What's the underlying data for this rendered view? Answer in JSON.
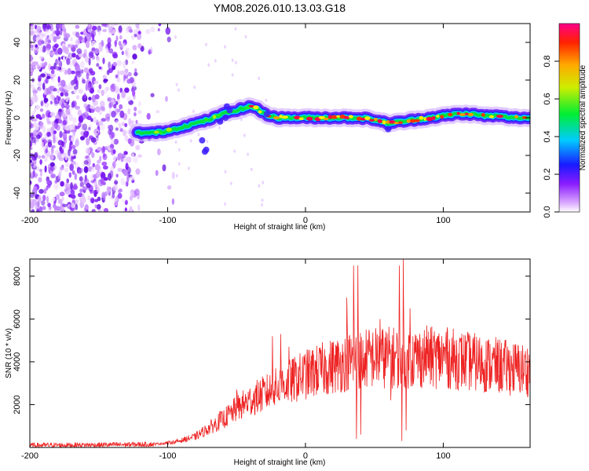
{
  "title": "YM08.2026.010.13.03.G18",
  "chart_data": [
    {
      "type": "heatmap",
      "title": "YM08.2026.010.13.03.G18",
      "xlabel": "Height of straight line (km)",
      "ylabel": "Frequency (Hz)",
      "xlim": [
        -200,
        163
      ],
      "ylim": [
        -50,
        50
      ],
      "xticks": [
        "-200",
        "-100",
        "0",
        "100"
      ],
      "yticks": [
        "-40",
        "-20",
        "0",
        "20",
        "40"
      ],
      "ridge": {
        "x": [
          -122,
          -110,
          -100,
          -90,
          -80,
          -70,
          -60,
          -50,
          -40,
          -35,
          -30,
          -20,
          -10,
          0,
          10,
          20,
          30,
          40,
          50,
          60,
          70,
          80,
          90,
          100,
          110,
          120,
          130,
          140,
          150,
          163
        ],
        "freq": [
          -8,
          -8,
          -7,
          -5,
          -3,
          -1,
          2,
          4,
          6,
          5,
          2,
          0,
          0,
          0,
          0,
          0,
          0,
          0,
          -1,
          -3,
          -2,
          -1,
          0,
          1,
          2,
          2,
          1,
          1,
          0,
          0
        ]
      },
      "colorbar": {
        "label": "Normalized spectral amplitude",
        "range": [
          0,
          1
        ],
        "ticks": [
          "0.0",
          "0.2",
          "0.4",
          "0.6",
          "0.8"
        ]
      }
    },
    {
      "type": "line",
      "xlabel": "Height of straight line (km)",
      "ylabel": "SNR (10 * v/v)",
      "xlim": [
        -200,
        163
      ],
      "ylim": [
        0,
        8800
      ],
      "xticks": [
        "-200",
        "-100",
        "0",
        "100"
      ],
      "yticks": [
        "2000",
        "4000",
        "6000",
        "8000"
      ],
      "color": "#ee2222",
      "envelope": {
        "x": [
          -200,
          -150,
          -110,
          -95,
          -80,
          -70,
          -60,
          -50,
          -40,
          -30,
          -20,
          -10,
          0,
          10,
          20,
          30,
          35,
          40,
          50,
          60,
          65,
          70,
          75,
          80,
          90,
          100,
          110,
          120,
          130,
          140,
          150,
          163
        ],
        "y": [
          100,
          120,
          150,
          250,
          500,
          900,
          1300,
          1800,
          2200,
          2500,
          2800,
          3100,
          3400,
          3600,
          3800,
          4000,
          4100,
          4100,
          4200,
          4200,
          4200,
          4200,
          4200,
          4200,
          4200,
          4200,
          4100,
          4000,
          3900,
          3800,
          3700,
          3600
        ]
      },
      "spikes": [
        {
          "x": -62,
          "y": 1700
        },
        {
          "x": -50,
          "y": 2700
        },
        {
          "x": -24,
          "y": 5200
        },
        {
          "x": -18,
          "y": 5300
        },
        {
          "x": -12,
          "y": 4700
        },
        {
          "x": 30,
          "y": 7000
        },
        {
          "x": 35,
          "y": 8500
        },
        {
          "x": 38,
          "y": 8500
        },
        {
          "x": 42,
          "y": 3200
        },
        {
          "x": 54,
          "y": 6000
        },
        {
          "x": 68,
          "y": 8500
        },
        {
          "x": 71,
          "y": 8800
        },
        {
          "x": 76,
          "y": 6500
        },
        {
          "x": 88,
          "y": 5700
        },
        {
          "x": 102,
          "y": 5400
        }
      ],
      "dips": [
        {
          "x": 37,
          "y": 400
        },
        {
          "x": 40,
          "y": 600
        },
        {
          "x": 70,
          "y": 300
        },
        {
          "x": 73,
          "y": 800
        },
        {
          "x": 62,
          "y": 2200
        }
      ]
    }
  ]
}
